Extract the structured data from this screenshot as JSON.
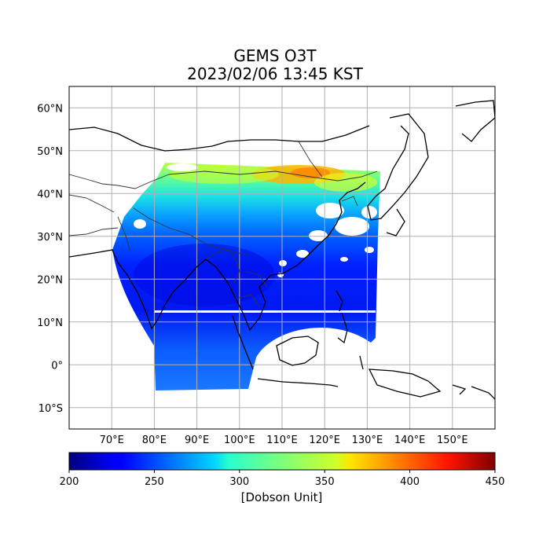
{
  "title": {
    "line1": "GEMS O3T",
    "line2": "2023/02/06 13:45 KST"
  },
  "map": {
    "lon_ticks": [
      "70°E",
      "80°E",
      "90°E",
      "100°E",
      "110°E",
      "120°E",
      "130°E",
      "140°E",
      "150°E"
    ],
    "lat_ticks": [
      "60°N",
      "50°N",
      "40°N",
      "30°N",
      "20°N",
      "10°N",
      "0°",
      "10°S"
    ],
    "lon_range": [
      60,
      160
    ],
    "lat_range": [
      -15,
      65
    ],
    "gridlines": true
  },
  "colorbar": {
    "label": "[Dobson Unit]",
    "ticks": [
      "200",
      "250",
      "300",
      "350",
      "400",
      "450"
    ],
    "range": [
      200,
      450
    ],
    "colormap": "jet"
  },
  "colors": {
    "grid": "#b0b0b0",
    "coast": "#000000",
    "border": "#555555"
  }
}
